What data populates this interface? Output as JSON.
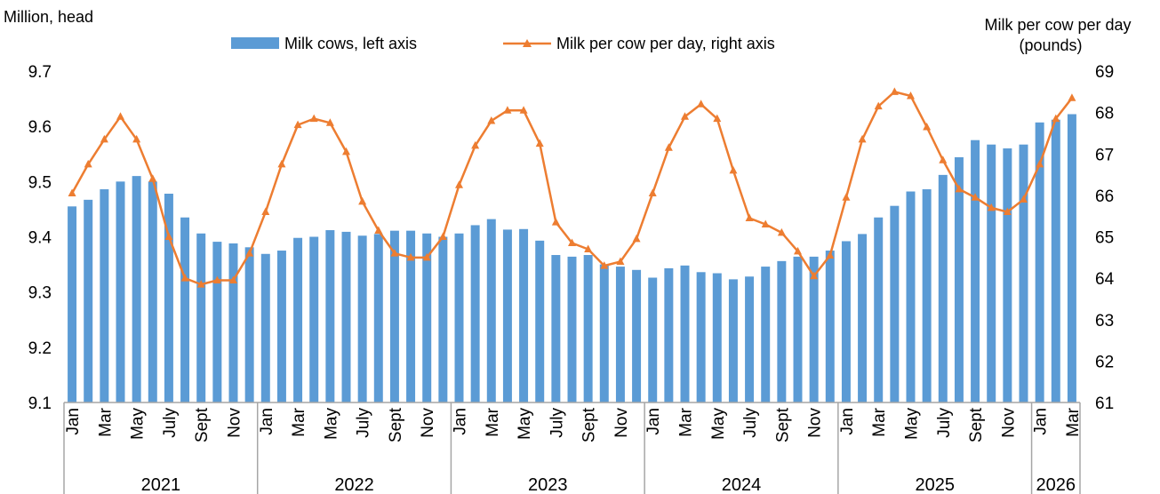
{
  "chart_data": {
    "type": "bar+line",
    "left_axis_label": "Million, head",
    "right_axis_label_lines": [
      "Milk per cow per day",
      "(pounds)"
    ],
    "left_ylim": [
      9.1,
      9.7
    ],
    "left_ticks": [
      "9.1",
      "9.2",
      "9.3",
      "9.4",
      "9.5",
      "9.6",
      "9.7"
    ],
    "right_ylim": [
      61,
      69
    ],
    "right_ticks": [
      "61",
      "62",
      "63",
      "64",
      "65",
      "66",
      "67",
      "68",
      "69"
    ],
    "legend": {
      "bar_label": "Milk cows, left axis",
      "line_label": "Milk per cow per day, right axis",
      "placement": "top"
    },
    "colors": {
      "bars": "#5b9bd5",
      "line": "#ed7d31",
      "axis": "#a6a6a6"
    },
    "month_tick_labels": [
      "Jan",
      "Mar",
      "May",
      "July",
      "Sept",
      "Nov"
    ],
    "years": [
      {
        "label": "2021",
        "months": 12
      },
      {
        "label": "2022",
        "months": 12
      },
      {
        "label": "2023",
        "months": 12
      },
      {
        "label": "2024",
        "months": 12
      },
      {
        "label": "2025",
        "months": 12
      },
      {
        "label": "2026",
        "months": 3
      }
    ],
    "series": [
      {
        "name": "Milk cows, left axis",
        "axis": "left",
        "kind": "bar",
        "values": [
          9.455,
          9.467,
          9.486,
          9.5,
          9.51,
          9.5,
          9.478,
          9.435,
          9.406,
          9.391,
          9.388,
          9.381,
          9.369,
          9.375,
          9.398,
          9.4,
          9.412,
          9.409,
          9.402,
          9.405,
          9.411,
          9.411,
          9.406,
          9.4,
          9.406,
          9.421,
          9.432,
          9.413,
          9.414,
          9.393,
          9.367,
          9.364,
          9.367,
          9.35,
          9.346,
          9.34,
          9.326,
          9.343,
          9.348,
          9.336,
          9.334,
          9.323,
          9.328,
          9.346,
          9.356,
          9.364,
          9.364,
          9.375,
          9.392,
          9.405,
          9.435,
          9.456,
          9.482,
          9.486,
          9.512,
          9.544,
          9.575,
          9.567,
          9.56,
          9.567,
          9.607,
          9.612,
          9.622
        ]
      },
      {
        "name": "Milk per cow per day, right axis",
        "axis": "right",
        "kind": "line",
        "values": [
          66.05,
          66.75,
          67.35,
          67.9,
          67.35,
          66.4,
          65.0,
          64.0,
          63.85,
          63.95,
          63.95,
          64.6,
          65.6,
          66.75,
          67.7,
          67.85,
          67.75,
          67.05,
          65.85,
          65.15,
          64.6,
          64.5,
          64.5,
          65.0,
          66.25,
          67.2,
          67.8,
          68.05,
          68.05,
          67.25,
          65.35,
          64.85,
          64.7,
          64.3,
          64.4,
          64.95,
          66.05,
          67.15,
          67.9,
          68.2,
          67.85,
          66.6,
          65.45,
          65.3,
          65.1,
          64.65,
          64.05,
          64.55,
          65.95,
          67.35,
          68.15,
          68.5,
          68.4,
          67.65,
          66.85,
          66.15,
          65.95,
          65.7,
          65.6,
          65.9,
          66.75,
          67.85,
          68.35
        ]
      }
    ]
  }
}
